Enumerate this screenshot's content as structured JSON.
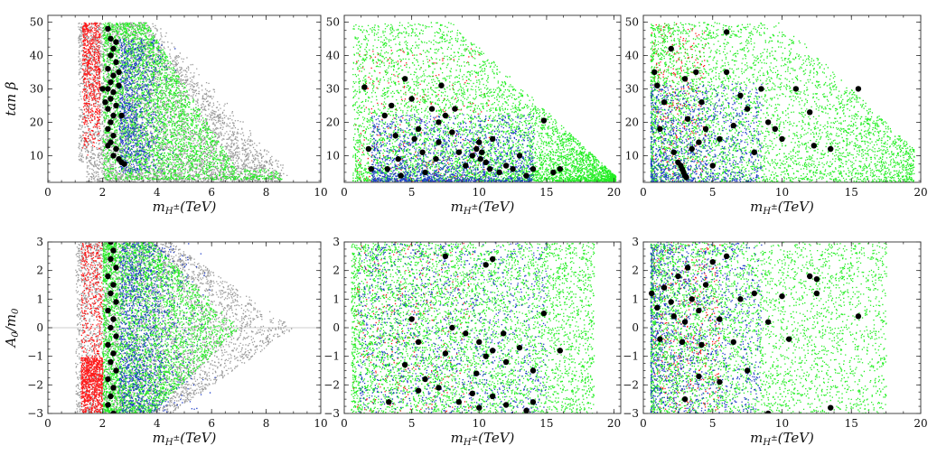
{
  "figure": {
    "colors": {
      "gray": "#9a9a9a",
      "red": "#ff1a1a",
      "green": "#22ee22",
      "blue": "#1f3cc8",
      "black": "#000000"
    },
    "panels": [
      {
        "id": "p11",
        "xlabel": "m_{H±}(TeV)",
        "ylabel": "tan β",
        "xlim": [
          0,
          10
        ],
        "ylim": [
          2,
          52
        ],
        "xticks": [
          0,
          2,
          4,
          6,
          8,
          10
        ],
        "yticks": [
          10,
          20,
          30,
          40,
          50
        ],
        "hline": null
      },
      {
        "id": "p12",
        "xlabel": "m_{H±}(TeV)",
        "ylabel": "",
        "xlim": [
          0,
          20.5
        ],
        "ylim": [
          2,
          52
        ],
        "xticks": [
          0,
          5,
          10,
          15,
          20
        ],
        "yticks": [
          10,
          20,
          30,
          40,
          50
        ],
        "hline": null
      },
      {
        "id": "p13",
        "xlabel": "m_{H±}(TeV)",
        "ylabel": "",
        "xlim": [
          0,
          20
        ],
        "ylim": [
          2,
          52
        ],
        "xticks": [
          0,
          5,
          10,
          15,
          20
        ],
        "yticks": [
          10,
          20,
          30,
          40,
          50
        ],
        "hline": null
      },
      {
        "id": "p21",
        "xlabel": "m_{H±}(TeV)",
        "ylabel": "A0/m0",
        "xlim": [
          0,
          10
        ],
        "ylim": [
          -3,
          3
        ],
        "xticks": [
          0,
          2,
          4,
          6,
          8,
          10
        ],
        "yticks": [
          -3,
          -2,
          -1,
          0,
          1,
          2,
          3
        ],
        "hline": 0
      },
      {
        "id": "p22",
        "xlabel": "m_{H±}(TeV)",
        "ylabel": "",
        "xlim": [
          0,
          20.5
        ],
        "ylim": [
          -3,
          3
        ],
        "xticks": [
          0,
          5,
          10,
          15,
          20
        ],
        "yticks": [
          -3,
          -2,
          -1,
          0,
          1,
          2,
          3
        ],
        "hline": null
      },
      {
        "id": "p23",
        "xlabel": "m_{H±}(TeV)",
        "ylabel": "",
        "xlim": [
          0,
          20
        ],
        "ylim": [
          -3,
          3
        ],
        "xticks": [
          0,
          5,
          10,
          15,
          20
        ],
        "yticks": [
          -3,
          -2,
          -1,
          0,
          1,
          2,
          3
        ],
        "hline": null
      }
    ]
  },
  "chart_data": [
    {
      "type": "scatter",
      "panel": "p11",
      "xlabel": "m_{H±}(TeV)",
      "ylabel": "tan β",
      "xlim": [
        0,
        10
      ],
      "ylim": [
        2,
        52
      ],
      "series": [
        {
          "name": "gray",
          "description": "broad band from m≈1 to m≈9, tanβ 3–50, shifting right at low tanβ"
        },
        {
          "name": "red",
          "description": "narrow band m≈1.2–2.0, tanβ 10–50"
        },
        {
          "name": "green",
          "description": "band m≈2–5.5 at high tanβ, extending to m≈8 at tanβ≈4"
        },
        {
          "name": "blue",
          "description": "m≈2.5–4, tanβ 5–45"
        },
        {
          "name": "black",
          "points": [
            [
              2.2,
              48
            ],
            [
              2.3,
              45
            ],
            [
              2.4,
              42
            ],
            [
              2.3,
              40
            ],
            [
              2.5,
              38
            ],
            [
              2.2,
              36
            ],
            [
              2.4,
              34
            ],
            [
              2.3,
              32
            ],
            [
              2.6,
              31
            ],
            [
              2.2,
              30
            ],
            [
              2.4,
              29
            ],
            [
              2.3,
              27
            ],
            [
              2.5,
              25
            ],
            [
              2.2,
              24
            ],
            [
              2.4,
              22
            ],
            [
              2.3,
              20
            ],
            [
              2.2,
              18
            ],
            [
              2.4,
              16
            ],
            [
              2.3,
              14
            ],
            [
              2.5,
              12
            ],
            [
              2.4,
              10
            ],
            [
              2.6,
              9
            ],
            [
              2.7,
              8
            ],
            [
              2.8,
              7.5
            ],
            [
              2.1,
              26
            ],
            [
              2.6,
              35
            ],
            [
              2.0,
              30
            ],
            [
              2.7,
              22
            ],
            [
              2.5,
              44
            ],
            [
              2.2,
              13
            ]
          ]
        }
      ]
    },
    {
      "type": "scatter",
      "panel": "p12",
      "xlabel": "m_{H±}(TeV)",
      "ylabel": "",
      "xlim": [
        0,
        20.5
      ],
      "ylim": [
        2,
        52
      ],
      "series": [
        {
          "name": "green",
          "description": "triangular cloud; tanβ up to 50 near m≈2–10, narrowing to tanβ≈5 at m≈20"
        },
        {
          "name": "blue",
          "description": "dense core m≈3–12, tanβ 3–20"
        },
        {
          "name": "black",
          "points": [
            [
              1.5,
              30.5
            ],
            [
              1.8,
              12
            ],
            [
              2,
              6
            ],
            [
              3,
              22
            ],
            [
              3.5,
              25
            ],
            [
              3.2,
              6
            ],
            [
              4,
              9
            ],
            [
              4.5,
              33
            ],
            [
              5,
              27
            ],
            [
              5.2,
              15
            ],
            [
              5.5,
              18
            ],
            [
              6,
              5
            ],
            [
              6.5,
              24
            ],
            [
              7,
              20
            ],
            [
              7.5,
              22
            ],
            [
              7.2,
              31
            ],
            [
              7,
              14
            ],
            [
              8,
              17
            ],
            [
              8.5,
              11
            ],
            [
              8.2,
              24
            ],
            [
              9,
              7
            ],
            [
              9.5,
              10
            ],
            [
              10,
              14
            ],
            [
              10.2,
              11
            ],
            [
              10.5,
              8
            ],
            [
              10.8,
              6
            ],
            [
              11,
              15
            ],
            [
              11.5,
              5
            ],
            [
              12,
              7
            ],
            [
              12.5,
              6
            ],
            [
              13,
              10
            ],
            [
              13.5,
              4
            ],
            [
              14,
              6
            ],
            [
              14.8,
              20.5
            ],
            [
              15.5,
              5
            ],
            [
              16,
              6
            ],
            [
              10.1,
              9
            ],
            [
              9.8,
              12
            ],
            [
              6.8,
              9
            ],
            [
              5.8,
              11
            ],
            [
              3.8,
              16
            ],
            [
              4.2,
              4
            ]
          ]
        }
      ]
    },
    {
      "type": "scatter",
      "panel": "p13",
      "xlabel": "m_{H±}(TeV)",
      "ylabel": "",
      "xlim": [
        0,
        20
      ],
      "ylim": [
        2,
        52
      ],
      "series": [
        {
          "name": "green",
          "description": "cloud m≈0.5–20, tanβ 2–50, densest below m≈10"
        },
        {
          "name": "blue",
          "description": "m≈1–8, tanβ 2–30"
        },
        {
          "name": "red",
          "description": "sparse, m≈0.5–4"
        },
        {
          "name": "black",
          "points": [
            [
              0.8,
              35
            ],
            [
              1,
              31
            ],
            [
              1.2,
              18
            ],
            [
              1.5,
              26
            ],
            [
              2,
              42
            ],
            [
              2.2,
              11
            ],
            [
              2.5,
              8
            ],
            [
              2.8,
              6
            ],
            [
              3,
              4
            ],
            [
              3,
              33
            ],
            [
              3.2,
              21
            ],
            [
              3.5,
              12
            ],
            [
              3.8,
              35
            ],
            [
              4,
              14
            ],
            [
              4.2,
              26
            ],
            [
              4.5,
              18
            ],
            [
              5,
              7
            ],
            [
              5.5,
              15
            ],
            [
              6,
              47
            ],
            [
              6,
              35
            ],
            [
              6.5,
              19
            ],
            [
              7,
              28
            ],
            [
              7.5,
              24
            ],
            [
              8,
              11
            ],
            [
              8.5,
              30
            ],
            [
              9,
              20
            ],
            [
              9.5,
              18
            ],
            [
              10,
              15
            ],
            [
              11,
              30
            ],
            [
              12,
              23
            ],
            [
              12.3,
              13
            ],
            [
              13.5,
              12
            ],
            [
              15.5,
              30
            ],
            [
              2.9,
              5
            ],
            [
              3.1,
              3.5
            ],
            [
              2.7,
              7
            ]
          ]
        }
      ]
    },
    {
      "type": "scatter",
      "panel": "p21",
      "xlabel": "m_{H±}(TeV)",
      "ylabel": "A0/m0",
      "xlim": [
        0,
        10
      ],
      "ylim": [
        -3,
        3
      ],
      "series": [
        {
          "name": "gray",
          "description": "m≈1–9, A0/m0 −3 to 3, bulging to m≈9 near A0/m0≈0"
        },
        {
          "name": "red",
          "description": "m≈1.2–2.0, strongest for A0/m0 < −1"
        },
        {
          "name": "green",
          "description": "m≈2–7, A0/m0 −3 to 3"
        },
        {
          "name": "blue",
          "description": "m≈2.5–5"
        },
        {
          "name": "black",
          "points": [
            [
              2.3,
              3
            ],
            [
              2.4,
              2.7
            ],
            [
              2.3,
              2.4
            ],
            [
              2.5,
              2.1
            ],
            [
              2.2,
              1.8
            ],
            [
              2.4,
              1.5
            ],
            [
              2.3,
              1.2
            ],
            [
              2.5,
              0.9
            ],
            [
              2.2,
              0.6
            ],
            [
              2.4,
              0.3
            ],
            [
              2.3,
              0
            ],
            [
              2.5,
              -0.3
            ],
            [
              2.2,
              -0.6
            ],
            [
              2.4,
              -0.9
            ],
            [
              2.3,
              -1.2
            ],
            [
              2.5,
              -1.5
            ],
            [
              2.2,
              -1.8
            ],
            [
              2.4,
              -2.1
            ],
            [
              2.3,
              -2.4
            ],
            [
              2.2,
              -2.7
            ],
            [
              2.4,
              -3
            ]
          ]
        }
      ]
    },
    {
      "type": "scatter",
      "panel": "p22",
      "xlabel": "m_{H±}(TeV)",
      "ylabel": "",
      "xlim": [
        0,
        20.5
      ],
      "ylim": [
        -3,
        3
      ],
      "series": [
        {
          "name": "green",
          "description": "fills m≈0.5–18 uniformly over A0/m0 −3 to 3"
        },
        {
          "name": "blue",
          "description": "scattered m≈1–15"
        },
        {
          "name": "black",
          "points": [
            [
              7.5,
              2.5
            ],
            [
              10.5,
              2.2
            ],
            [
              11,
              2.4
            ],
            [
              5,
              0.3
            ],
            [
              5.5,
              -0.5
            ],
            [
              8,
              0
            ],
            [
              9,
              -0.2
            ],
            [
              10,
              -0.5
            ],
            [
              10.5,
              -1
            ],
            [
              11,
              -0.8
            ],
            [
              12,
              -1.2
            ],
            [
              13,
              -0.7
            ],
            [
              14,
              -1.5
            ],
            [
              14.8,
              0.5
            ],
            [
              16,
              -0.8
            ],
            [
              4.5,
              -1.3
            ],
            [
              6,
              -1.8
            ],
            [
              7,
              -2.1
            ],
            [
              8.5,
              -2.6
            ],
            [
              9.5,
              -2.3
            ],
            [
              10,
              -2.8
            ],
            [
              11,
              -2.4
            ],
            [
              12,
              -2.7
            ],
            [
              13.5,
              -2.9
            ],
            [
              14,
              -2.6
            ],
            [
              3.3,
              -2.6
            ],
            [
              5.5,
              -2.2
            ],
            [
              9.8,
              -1.6
            ],
            [
              7.5,
              -0.9
            ],
            [
              11.8,
              -0.2
            ]
          ]
        }
      ]
    },
    {
      "type": "scatter",
      "panel": "p23",
      "xlabel": "m_{H±}(TeV)",
      "ylabel": "",
      "xlim": [
        0,
        20
      ],
      "ylim": [
        -3,
        3
      ],
      "series": [
        {
          "name": "green",
          "description": "m≈0.5–17, A0/m0 −3 to 3, densest below m≈8"
        },
        {
          "name": "blue",
          "description": "m≈0.5–7"
        },
        {
          "name": "red",
          "description": "sparse, m≈0.5–5"
        },
        {
          "name": "black",
          "points": [
            [
              0.6,
              1.2
            ],
            [
              1,
              0.7
            ],
            [
              1.2,
              -0.4
            ],
            [
              1.5,
              1.4
            ],
            [
              2,
              0.9
            ],
            [
              2.2,
              0.4
            ],
            [
              2.5,
              1.8
            ],
            [
              2.8,
              -0.5
            ],
            [
              3,
              0.2
            ],
            [
              3.2,
              2.1
            ],
            [
              3.5,
              1.0
            ],
            [
              4,
              0.6
            ],
            [
              4.2,
              -0.6
            ],
            [
              4.5,
              1.5
            ],
            [
              5,
              2.3
            ],
            [
              5.5,
              0.3
            ],
            [
              6,
              2.5
            ],
            [
              6.5,
              -0.5
            ],
            [
              7,
              1.0
            ],
            [
              7.5,
              -1.5
            ],
            [
              8,
              1.2
            ],
            [
              9,
              0.2
            ],
            [
              10,
              1.1
            ],
            [
              10.5,
              -0.4
            ],
            [
              12,
              1.8
            ],
            [
              12.5,
              1.2
            ],
            [
              12.5,
              1.7
            ],
            [
              15.5,
              0.4
            ],
            [
              3,
              -2.5
            ],
            [
              4,
              -1.7
            ],
            [
              5.5,
              -1.9
            ],
            [
              9,
              -3
            ],
            [
              13.5,
              -2.8
            ]
          ]
        }
      ]
    }
  ]
}
